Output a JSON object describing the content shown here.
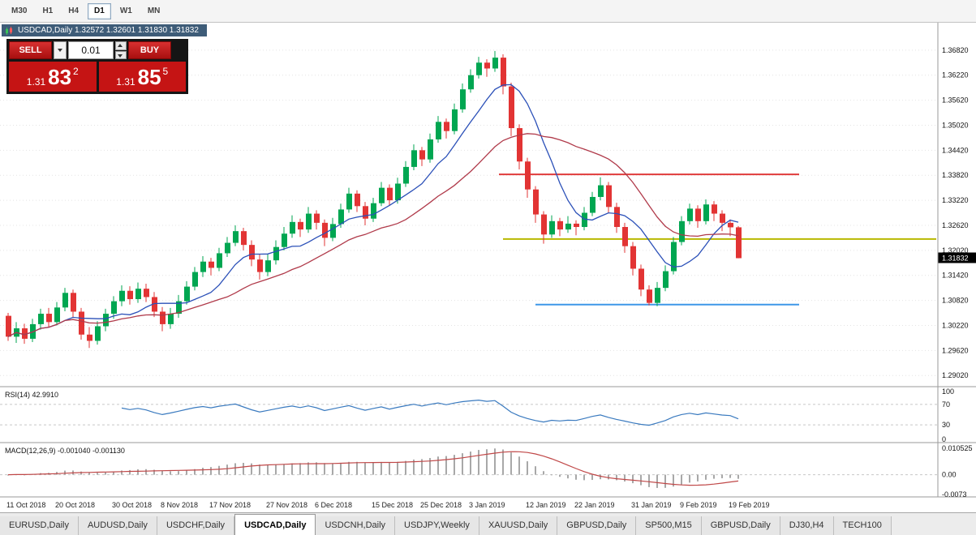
{
  "toolbar": {
    "timeframes": [
      {
        "label": "M30",
        "active": false
      },
      {
        "label": "H1",
        "active": false
      },
      {
        "label": "H4",
        "active": false
      },
      {
        "label": "D1",
        "active": true
      },
      {
        "label": "W1",
        "active": false
      },
      {
        "label": "MN",
        "active": false
      }
    ]
  },
  "chart_caption": {
    "text": "USDCAD,Daily  1.32572 1.32601 1.31830 1.31832"
  },
  "trade_panel": {
    "sell_label": "SELL",
    "buy_label": "BUY",
    "volume": "0.01",
    "sell": {
      "prefix": "1.31",
      "big": "83",
      "sup": "2"
    },
    "buy": {
      "prefix": "1.31",
      "big": "85",
      "sup": "5"
    }
  },
  "chart_data": {
    "type": "candlestick",
    "symbol": "USDCAD",
    "timeframe": "Daily",
    "title": "USDCAD,Daily",
    "last_ohlc": {
      "open": 1.32572,
      "high": 1.32601,
      "low": 1.3183,
      "close": 1.31832
    },
    "current_price": "1.31832",
    "up_color": "#00a651",
    "down_color": "#e23434",
    "ma_fast": {
      "period": 8,
      "color": "#2b50b8"
    },
    "ma_slow": {
      "period": 20,
      "color": "#b03a4a"
    },
    "price_range": [
      1.2881,
      1.374
    ],
    "y_axis_labels": [
      "1.36820",
      "1.36220",
      "1.35620",
      "1.35020",
      "1.34420",
      "1.33820",
      "1.33220",
      "1.32620",
      "1.32020",
      "1.31420",
      "1.30820",
      "1.30220",
      "1.29620",
      "1.29020"
    ],
    "hlines": [
      {
        "name": "resistance-line",
        "price": 1.3384,
        "color": "#e03c3c",
        "from_idx": 60.5,
        "to_idx": 97.5,
        "to_axis": false
      },
      {
        "name": "mid-line",
        "price": 1.3229,
        "color": "#b8b800",
        "from_idx": 61,
        "to_idx": 97.5,
        "to_axis": true
      },
      {
        "name": "support-line",
        "price": 1.3072,
        "color": "#3e97e8",
        "from_idx": 65,
        "to_idx": 97.5,
        "to_axis": false
      }
    ],
    "x_ticks": [
      {
        "i": 0,
        "label": "11 Oct 2018"
      },
      {
        "i": 6,
        "label": "20 Oct 2018"
      },
      {
        "i": 13,
        "label": "30 Oct 2018"
      },
      {
        "i": 19,
        "label": "8 Nov 2018"
      },
      {
        "i": 25,
        "label": "17 Nov 2018"
      },
      {
        "i": 32,
        "label": "27 Nov 2018"
      },
      {
        "i": 38,
        "label": "6 Dec 2018"
      },
      {
        "i": 45,
        "label": "15 Dec 2018"
      },
      {
        "i": 51,
        "label": "25 Dec 2018"
      },
      {
        "i": 57,
        "label": "3 Jan 2019"
      },
      {
        "i": 64,
        "label": "12 Jan 2019"
      },
      {
        "i": 70,
        "label": "22 Jan 2019"
      },
      {
        "i": 77,
        "label": "31 Jan 2019"
      },
      {
        "i": 83,
        "label": "9 Feb 2019"
      },
      {
        "i": 89,
        "label": "19 Feb 2019"
      }
    ],
    "candles": [
      [
        1.3045,
        1.3052,
        1.2985,
        1.2995
      ],
      [
        1.2995,
        1.303,
        1.298,
        1.3015
      ],
      [
        1.3015,
        1.3026,
        1.2978,
        1.299
      ],
      [
        1.299,
        1.3038,
        1.2982,
        1.3025
      ],
      [
        1.3025,
        1.3062,
        1.3012,
        1.305
      ],
      [
        1.305,
        1.3064,
        1.3018,
        1.303
      ],
      [
        1.303,
        1.3078,
        1.3022,
        1.3065
      ],
      [
        1.3065,
        1.3112,
        1.3056,
        1.31
      ],
      [
        1.31,
        1.3108,
        1.3042,
        1.3055
      ],
      [
        1.3055,
        1.3064,
        1.2988,
        1.3
      ],
      [
        1.3,
        1.3018,
        1.2968,
        1.2985
      ],
      [
        1.2985,
        1.3032,
        1.2976,
        1.302
      ],
      [
        1.302,
        1.3062,
        1.3008,
        1.305
      ],
      [
        1.305,
        1.3092,
        1.3038,
        1.308
      ],
      [
        1.308,
        1.3118,
        1.3068,
        1.3105
      ],
      [
        1.3105,
        1.3116,
        1.3072,
        1.3085
      ],
      [
        1.3085,
        1.3125,
        1.3076,
        1.311
      ],
      [
        1.311,
        1.3122,
        1.3078,
        1.309
      ],
      [
        1.309,
        1.3102,
        1.3042,
        1.3055
      ],
      [
        1.3055,
        1.3066,
        1.3008,
        1.3025
      ],
      [
        1.3025,
        1.3064,
        1.3014,
        1.305
      ],
      [
        1.305,
        1.3095,
        1.304,
        1.308
      ],
      [
        1.308,
        1.3128,
        1.3072,
        1.3115
      ],
      [
        1.3115,
        1.3162,
        1.3106,
        1.315
      ],
      [
        1.315,
        1.3188,
        1.3138,
        1.3175
      ],
      [
        1.3175,
        1.3184,
        1.3142,
        1.316
      ],
      [
        1.316,
        1.3208,
        1.3152,
        1.3195
      ],
      [
        1.3195,
        1.3234,
        1.3186,
        1.322
      ],
      [
        1.322,
        1.3262,
        1.3212,
        1.3248
      ],
      [
        1.3248,
        1.3256,
        1.3202,
        1.3215
      ],
      [
        1.3215,
        1.3226,
        1.3164,
        1.318
      ],
      [
        1.318,
        1.3192,
        1.3132,
        1.315
      ],
      [
        1.315,
        1.3194,
        1.314,
        1.3178
      ],
      [
        1.3178,
        1.3226,
        1.3168,
        1.321
      ],
      [
        1.321,
        1.3258,
        1.3202,
        1.3242
      ],
      [
        1.3242,
        1.3286,
        1.3232,
        1.327
      ],
      [
        1.327,
        1.3278,
        1.3234,
        1.3252
      ],
      [
        1.3252,
        1.3306,
        1.3244,
        1.329
      ],
      [
        1.329,
        1.3298,
        1.3252,
        1.3268
      ],
      [
        1.3268,
        1.3276,
        1.3212,
        1.3232
      ],
      [
        1.3232,
        1.328,
        1.3224,
        1.3265
      ],
      [
        1.3265,
        1.3314,
        1.3256,
        1.33
      ],
      [
        1.33,
        1.3352,
        1.3292,
        1.3338
      ],
      [
        1.3338,
        1.3346,
        1.3294,
        1.3308
      ],
      [
        1.3308,
        1.3318,
        1.3262,
        1.3278
      ],
      [
        1.3278,
        1.3328,
        1.327,
        1.3315
      ],
      [
        1.3315,
        1.3366,
        1.3308,
        1.3352
      ],
      [
        1.3352,
        1.336,
        1.331,
        1.3322
      ],
      [
        1.3322,
        1.3376,
        1.3314,
        1.3362
      ],
      [
        1.3362,
        1.3416,
        1.3354,
        1.3402
      ],
      [
        1.3402,
        1.3456,
        1.3394,
        1.3442
      ],
      [
        1.3442,
        1.345,
        1.3404,
        1.342
      ],
      [
        1.342,
        1.3482,
        1.3412,
        1.3468
      ],
      [
        1.3468,
        1.3524,
        1.346,
        1.351
      ],
      [
        1.351,
        1.3518,
        1.347,
        1.3488
      ],
      [
        1.3488,
        1.3554,
        1.348,
        1.354
      ],
      [
        1.354,
        1.3602,
        1.3532,
        1.3588
      ],
      [
        1.3588,
        1.3636,
        1.358,
        1.3622
      ],
      [
        1.3622,
        1.3666,
        1.3614,
        1.3652
      ],
      [
        1.3652,
        1.366,
        1.3618,
        1.3638
      ],
      [
        1.3638,
        1.368,
        1.363,
        1.3664
      ],
      [
        1.3664,
        1.3672,
        1.3576,
        1.3595
      ],
      [
        1.3595,
        1.3604,
        1.3476,
        1.3495
      ],
      [
        1.3495,
        1.3504,
        1.3396,
        1.3415
      ],
      [
        1.3415,
        1.3424,
        1.3328,
        1.3348
      ],
      [
        1.3348,
        1.3356,
        1.3268,
        1.3288
      ],
      [
        1.3288,
        1.3296,
        1.3218,
        1.324
      ],
      [
        1.324,
        1.3286,
        1.3232,
        1.3272
      ],
      [
        1.3272,
        1.328,
        1.3236,
        1.3252
      ],
      [
        1.3252,
        1.3284,
        1.3244,
        1.3266
      ],
      [
        1.3266,
        1.3274,
        1.3238,
        1.3258
      ],
      [
        1.3258,
        1.3306,
        1.325,
        1.3292
      ],
      [
        1.3292,
        1.3342,
        1.3284,
        1.333
      ],
      [
        1.333,
        1.3377,
        1.3322,
        1.3358
      ],
      [
        1.3358,
        1.3366,
        1.3292,
        1.3306
      ],
      [
        1.3306,
        1.3316,
        1.3244,
        1.3258
      ],
      [
        1.3258,
        1.3268,
        1.3196,
        1.3212
      ],
      [
        1.3212,
        1.3222,
        1.3142,
        1.3158
      ],
      [
        1.3158,
        1.3168,
        1.3092,
        1.3108
      ],
      [
        1.3108,
        1.3118,
        1.307,
        1.3076
      ],
      [
        1.3076,
        1.3126,
        1.3068,
        1.3112
      ],
      [
        1.3112,
        1.3166,
        1.3104,
        1.3152
      ],
      [
        1.3152,
        1.3234,
        1.3144,
        1.3222
      ],
      [
        1.3222,
        1.3284,
        1.3214,
        1.3272
      ],
      [
        1.3272,
        1.3314,
        1.3264,
        1.3302
      ],
      [
        1.3302,
        1.331,
        1.3256,
        1.3272
      ],
      [
        1.3272,
        1.3324,
        1.3264,
        1.3312
      ],
      [
        1.3312,
        1.332,
        1.3272,
        1.329
      ],
      [
        1.329,
        1.3298,
        1.3248,
        1.3268
      ],
      [
        1.3268,
        1.3276,
        1.3236,
        1.32572
      ],
      [
        1.32572,
        1.32601,
        1.3183,
        1.31832
      ]
    ],
    "indicators": [
      {
        "name": "RSI",
        "label": "RSI(14) 42.9910",
        "value": 42.991,
        "color": "#3a7abf",
        "levels": [
          "100",
          "70",
          "30",
          "0"
        ],
        "dashed_levels": [
          70,
          30
        ],
        "range": [
          0,
          100
        ]
      },
      {
        "name": "MACD",
        "label": "MACD(12,26,9) -0.001040 -0.001130",
        "values": [
          -0.00104,
          -0.00113
        ],
        "histogram_color": "#a8a8a8",
        "signal_color": "#c04848",
        "levels": [
          "0.010525",
          "0.00",
          "-0.0073"
        ],
        "range": [
          -0.0073,
          0.010525
        ]
      }
    ]
  },
  "symbol_tabs": [
    {
      "label": "EURUSD,Daily",
      "active": false
    },
    {
      "label": "AUDUSD,Daily",
      "active": false
    },
    {
      "label": "USDCHF,Daily",
      "active": false
    },
    {
      "label": "USDCAD,Daily",
      "active": true
    },
    {
      "label": "USDCNH,Daily",
      "active": false
    },
    {
      "label": "USDJPY,Weekly",
      "active": false
    },
    {
      "label": "XAUUSD,Daily",
      "active": false
    },
    {
      "label": "GBPUSD,Daily",
      "active": false
    },
    {
      "label": "SP500,M15",
      "active": false
    },
    {
      "label": "GBPUSD,Daily",
      "active": false
    },
    {
      "label": "DJ30,H4",
      "active": false
    },
    {
      "label": "TECH100",
      "active": false
    }
  ]
}
